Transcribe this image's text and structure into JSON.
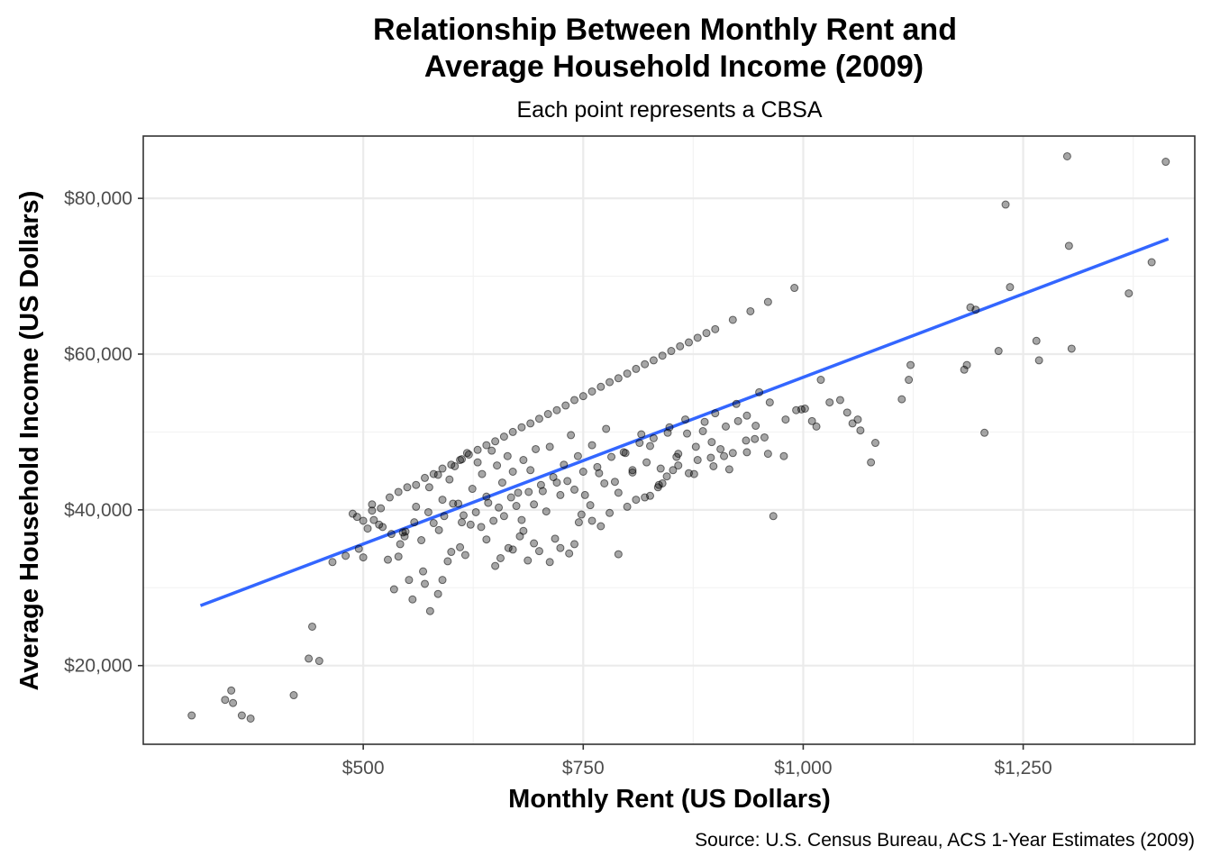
{
  "chart_data": {
    "type": "scatter",
    "title_lines": [
      "Relationship Between Monthly Rent and",
      "Average Household Income (2009)"
    ],
    "subtitle": "Each point represents a CBSA",
    "xlabel": "Monthly Rent (US Dollars)",
    "ylabel": "Average Household Income (US Dollars)",
    "caption": "Source: U.S. Census Bureau, ACS 1-Year Estimates (2009)",
    "xlim": [
      250,
      1445
    ],
    "ylim": [
      9900,
      88000
    ],
    "x_ticks": [
      500,
      750,
      1000,
      1250
    ],
    "x_tick_labels": [
      "$500",
      "$750",
      "$1,000",
      "$1,250"
    ],
    "y_ticks": [
      20000,
      40000,
      60000,
      80000
    ],
    "y_tick_labels": [
      "$20,000",
      "$40,000",
      "$60,000",
      "$80,000"
    ],
    "grid": true,
    "legend": "none",
    "trend_line": {
      "type": "linear",
      "color": "#3366ff",
      "x": [
        315,
        1415
      ],
      "y": [
        27700,
        74800
      ]
    },
    "x": [
      305,
      343,
      350,
      352,
      362,
      372,
      421,
      438,
      450,
      442,
      465,
      480,
      488,
      493,
      495,
      500,
      505,
      510,
      518,
      528,
      535,
      540,
      545,
      547,
      552,
      556,
      568,
      570,
      576,
      585,
      590,
      596,
      600,
      610,
      612,
      616,
      640,
      650,
      656,
      665,
      670,
      678,
      682,
      687,
      694,
      700,
      712,
      718,
      724,
      734,
      740,
      745,
      748,
      760,
      770,
      780,
      790,
      800,
      810,
      820,
      826,
      835,
      840,
      845,
      852,
      858,
      870,
      880,
      895,
      898,
      910,
      920,
      935,
      945,
      960,
      978,
      980,
      992,
      998,
      1002,
      1010,
      1015,
      1020,
      1030,
      1042,
      1050,
      1056,
      1062,
      1065,
      1077,
      1082,
      1112,
      1120,
      1122,
      1183,
      1186,
      1190,
      1196,
      1206,
      1222,
      1230,
      1235,
      1265,
      1268,
      1300,
      1302,
      1305,
      1370,
      1396,
      1412,
      560,
      575,
      585,
      590,
      598,
      604,
      608,
      612,
      618,
      624,
      630,
      635,
      640,
      646,
      652,
      658,
      664,
      670,
      676,
      682,
      690,
      696,
      704,
      712,
      720,
      728,
      736,
      744,
      752,
      760,
      768,
      776,
      786,
      796,
      806,
      816,
      826,
      836,
      846,
      856,
      866,
      876,
      886,
      896,
      906,
      916,
      926,
      936,
      946,
      956,
      966,
      512,
      522,
      532,
      542,
      548,
      558,
      566,
      574,
      580,
      586,
      592,
      602,
      614,
      622,
      628,
      634,
      642,
      648,
      654,
      660,
      668,
      674,
      680,
      688,
      694,
      702,
      708,
      716,
      724,
      732,
      740,
      750,
      758,
      766,
      774,
      782,
      790,
      798,
      806,
      814,
      822,
      830,
      838,
      848,
      858,
      868,
      878,
      888,
      900,
      912,
      924,
      936,
      950,
      962,
      500,
      510,
      520,
      530,
      540,
      550,
      560,
      570,
      580,
      590,
      600,
      610,
      620,
      630,
      640,
      650,
      660,
      670,
      680,
      690,
      700,
      710,
      720,
      730,
      740,
      750,
      760,
      770,
      780,
      790,
      800,
      810,
      820,
      830,
      840,
      850,
      860,
      870,
      880,
      890,
      900,
      920,
      940,
      960,
      990
    ],
    "y": [
      13600,
      15600,
      16800,
      15200,
      13600,
      13200,
      16200,
      20900,
      20600,
      25000,
      33300,
      34100,
      39500,
      39100,
      35000,
      33900,
      37600,
      40700,
      38100,
      33600,
      29800,
      34000,
      37100,
      36600,
      31000,
      28500,
      32100,
      30500,
      27000,
      29200,
      31000,
      33400,
      34600,
      35200,
      38400,
      34200,
      36200,
      32800,
      33800,
      35100,
      34900,
      36600,
      37300,
      33500,
      35700,
      34700,
      33300,
      36300,
      35100,
      34400,
      35600,
      38400,
      39400,
      38600,
      37900,
      39600,
      34300,
      40400,
      41300,
      41600,
      41800,
      42900,
      43400,
      44300,
      45100,
      45700,
      44700,
      46400,
      46700,
      45600,
      46900,
      47300,
      48900,
      49100,
      47200,
      46900,
      51600,
      52800,
      52900,
      53000,
      51400,
      50700,
      56700,
      53800,
      54100,
      52500,
      51100,
      51600,
      50200,
      46100,
      48600,
      54200,
      56700,
      58600,
      58000,
      58600,
      66000,
      65700,
      49900,
      60400,
      79200,
      68600,
      61700,
      59200,
      85400,
      73900,
      60700,
      67800,
      71800,
      84700,
      40400,
      42900,
      44500,
      41300,
      43900,
      45600,
      40800,
      46500,
      47300,
      42700,
      46100,
      44600,
      41700,
      47600,
      45700,
      43500,
      46900,
      44900,
      42200,
      46400,
      45100,
      47800,
      42400,
      48100,
      43500,
      45800,
      49600,
      46900,
      41900,
      48300,
      44700,
      50400,
      43600,
      47400,
      45100,
      49700,
      48200,
      43200,
      49900,
      46800,
      51600,
      44600,
      50100,
      48700,
      47800,
      45200,
      51400,
      47400,
      50800,
      49300,
      39200,
      38700,
      37800,
      36900,
      35600,
      37200,
      38400,
      36100,
      39700,
      38300,
      37400,
      39200,
      40800,
      39300,
      38100,
      39700,
      37800,
      40900,
      38600,
      40300,
      39200,
      41600,
      40500,
      38700,
      42300,
      40700,
      43200,
      39800,
      44200,
      41900,
      43700,
      42600,
      44900,
      40600,
      45500,
      43400,
      46800,
      42200,
      47300,
      44800,
      48600,
      46100,
      49200,
      45300,
      50600,
      47200,
      49800,
      48100,
      51300,
      52400,
      50700,
      53600,
      52100,
      55100,
      53800,
      38600,
      39900,
      40200,
      41600,
      42300,
      42900,
      43200,
      44100,
      44600,
      45300,
      45800,
      46400,
      47100,
      47700,
      48300,
      48800,
      49400,
      50000,
      50600,
      51100,
      51700,
      52300,
      52800,
      53400,
      54100,
      54600,
      55200,
      55800,
      56400,
      56900,
      57500,
      58100,
      58700,
      59200,
      59800,
      60400,
      61000,
      61500,
      62100,
      62700,
      63200,
      64400,
      65500,
      66700,
      68500
    ]
  }
}
